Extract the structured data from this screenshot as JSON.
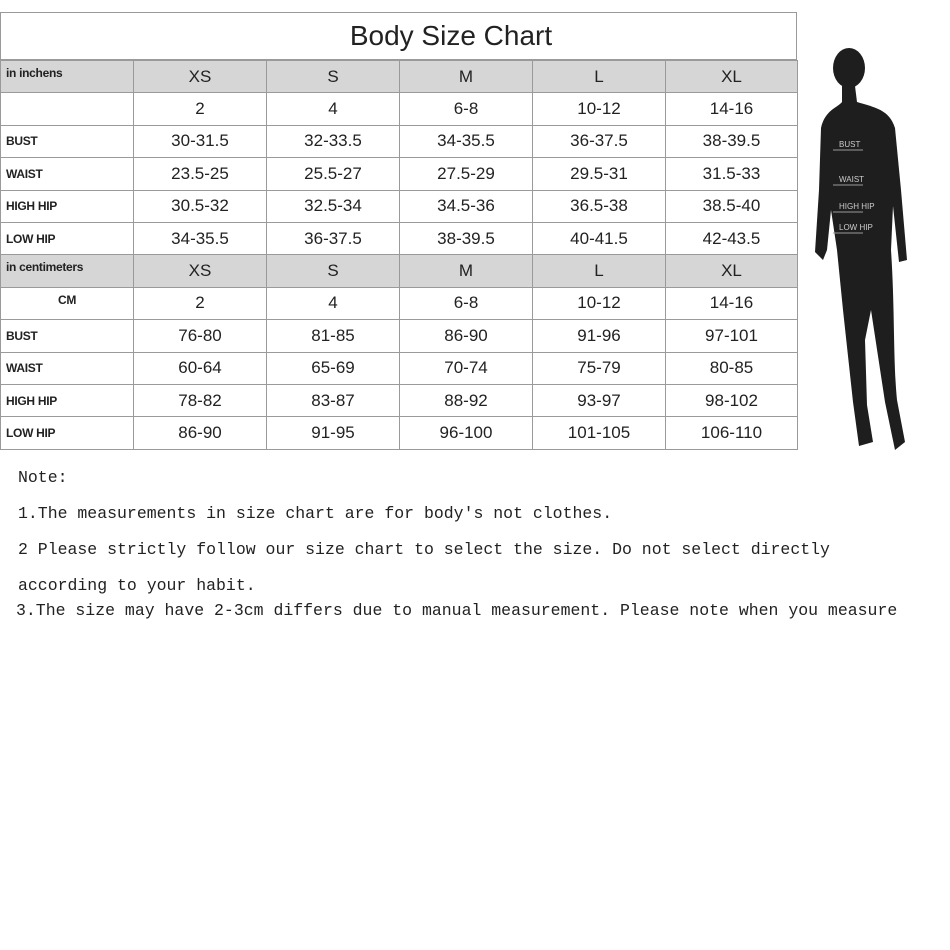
{
  "title": "Body Size Chart",
  "tables": [
    {
      "label": "in inchens",
      "columns": [
        "XS",
        "S",
        "M",
        "L",
        "XL"
      ],
      "rows": [
        {
          "cells": [
            "2",
            "4",
            "6-8",
            "10-12",
            "14-16"
          ]
        },
        {
          "label": "BUST",
          "cells": [
            "30-31.5",
            "32-33.5",
            "34-35.5",
            "36-37.5",
            "38-39.5"
          ]
        },
        {
          "label": "WAIST",
          "cells": [
            "23.5-25",
            "25.5-27",
            "27.5-29",
            "29.5-31",
            "31.5-33"
          ]
        },
        {
          "label": "HIGH HIP",
          "cells": [
            "30.5-32",
            "32.5-34",
            "34.5-36",
            "36.5-38",
            "38.5-40"
          ]
        },
        {
          "label": "LOW HIP",
          "cells": [
            "34-35.5",
            "36-37.5",
            "38-39.5",
            "40-41.5",
            "42-43.5"
          ]
        }
      ]
    },
    {
      "label": "in centimeters",
      "columns": [
        "XS",
        "S",
        "M",
        "L",
        "XL"
      ],
      "rows": [
        {
          "label": "CM",
          "cells": [
            "2",
            "4",
            "6-8",
            "10-12",
            "14-16"
          ]
        },
        {
          "label": "BUST",
          "cells": [
            "76-80",
            "81-85",
            "86-90",
            "91-96",
            "97-101"
          ]
        },
        {
          "label": "WAIST",
          "cells": [
            "60-64",
            "65-69",
            "70-74",
            "75-79",
            "80-85"
          ]
        },
        {
          "label": "HIGH HIP",
          "cells": [
            "78-82",
            "83-87",
            "88-92",
            "93-97",
            "98-102"
          ]
        },
        {
          "label": "LOW HIP",
          "cells": [
            "86-90",
            "91-95",
            "96-100",
            "101-105",
            "106-110"
          ]
        }
      ]
    }
  ],
  "figure_labels": [
    "BUST",
    "WAIST",
    "HIGH HIP",
    "LOW HIP"
  ],
  "notes": {
    "heading": "Note:",
    "lines": [
      "1.The measurements in size chart are for body's not clothes.",
      "2 Please strictly follow our size chart to select the size. Do not select directly",
      "according to your habit.",
      "3.The size may have 2-3cm differs due to manual measurement. Please note when you measure"
    ]
  }
}
